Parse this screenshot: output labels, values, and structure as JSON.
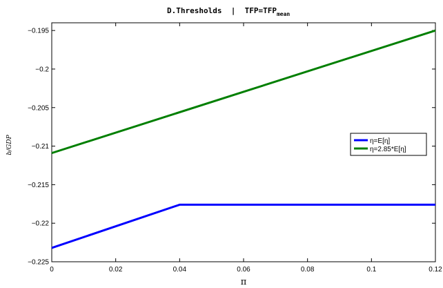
{
  "chart_data": {
    "type": "line",
    "title": "D.Thresholds  |  TFP=TFP",
    "title_subscript": "mean",
    "xlabel": "π",
    "ylabel": "b/GDP",
    "xlim": [
      0,
      0.12
    ],
    "ylim": [
      -0.225,
      -0.194
    ],
    "xticks": [
      0,
      0.02,
      0.04,
      0.06,
      0.08,
      0.1,
      0.12
    ],
    "xtick_labels": [
      "0",
      "0.02",
      "0.04",
      "0.06",
      "0.08",
      "0.1",
      "0.12"
    ],
    "yticks": [
      -0.225,
      -0.22,
      -0.215,
      -0.21,
      -0.205,
      -0.2,
      -0.195
    ],
    "ytick_labels": [
      "−0.225",
      "−0.22",
      "−0.215",
      "−0.21",
      "−0.205",
      "−0.2",
      "−0.195"
    ],
    "grid": false,
    "legend_position": "right",
    "series": [
      {
        "name": "η=E[η]",
        "color": "#0000ff",
        "x": [
          0,
          0.04,
          0.12
        ],
        "y": [
          -0.2232,
          -0.2176,
          -0.2176
        ]
      },
      {
        "name": "η=2.85*E[η]",
        "color": "#007f00",
        "x": [
          0,
          0.12
        ],
        "y": [
          -0.2109,
          -0.195
        ]
      }
    ]
  }
}
